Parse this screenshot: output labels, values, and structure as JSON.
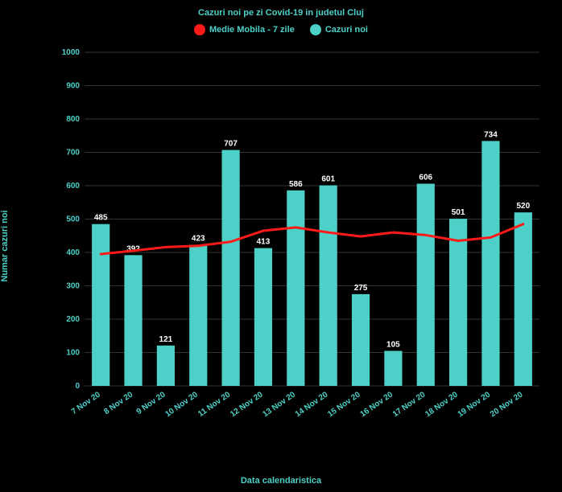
{
  "chart": {
    "type": "bar+line",
    "title": "Cazuri noi pe zi Covid-19 in judetul Cluj",
    "x_axis_label": "Data calendaristica",
    "y_axis_label": "Numar cazuri noi",
    "background_color": "#000000",
    "text_color": "#4dd0c7",
    "title_fontsize": 11,
    "axis_label_fontsize": 11,
    "tick_fontsize": 10,
    "ylim": [
      0,
      1000
    ],
    "yticks": [
      0,
      100,
      200,
      300,
      400,
      500,
      600,
      700,
      800,
      900,
      1000
    ],
    "grid_color": "#333333",
    "categories": [
      "7 Nov 20",
      "8 Nov 20",
      "9 Nov 20",
      "10 Nov 20",
      "11 Nov 20",
      "12 Nov 20",
      "13 Nov 20",
      "14 Nov 20",
      "15 Nov 20",
      "16 Nov 20",
      "17 Nov 20",
      "18 Nov 20",
      "19 Nov 20",
      "20 Nov 20"
    ],
    "bars": {
      "label": "Cazuri noi",
      "color": "#4dd0c7",
      "values": [
        485,
        392,
        121,
        423,
        707,
        413,
        586,
        601,
        275,
        105,
        606,
        501,
        734,
        520
      ],
      "bar_width": 0.55,
      "value_label_color": "#ffffff"
    },
    "line": {
      "label": "Medie Mobila - 7 zile",
      "color": "#ff1a1a",
      "width": 3,
      "values": [
        395,
        405,
        416,
        420,
        432,
        465,
        475,
        460,
        448,
        460,
        452,
        435,
        445,
        485
      ]
    },
    "legend": {
      "items": [
        {
          "label": "Medie Mobila - 7 zile",
          "color": "#ff1a1a"
        },
        {
          "label": "Cazuri noi",
          "color": "#4dd0c7"
        }
      ]
    }
  }
}
